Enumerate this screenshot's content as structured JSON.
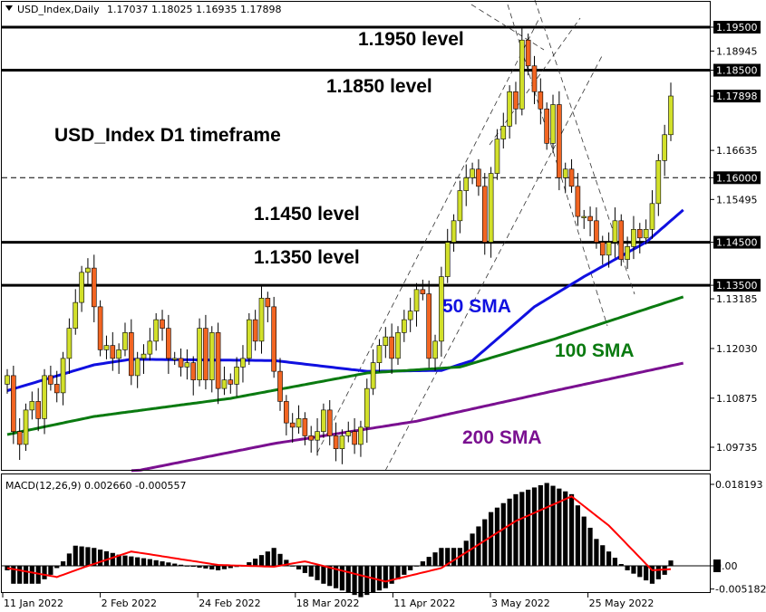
{
  "header": {
    "symbol_label": "USD_Index,Daily",
    "ohlc": "1.17037 1.18025 1.16935 1.17898"
  },
  "macd_header": "MACD(12,26,9) 0.002660 -0.000557",
  "chart_data": [
    {
      "type": "candlestick",
      "title": "USD_Index,Daily",
      "ylim": [
        1.0895,
        1.201
      ],
      "price_ticks": [
        "1.19500",
        "1.18945",
        "1.18500",
        "1.17898",
        "1.16635",
        "1.16000",
        "1.15495",
        "1.14500",
        "1.13500",
        "1.13185",
        "1.12030",
        "1.10875",
        "1.09735"
      ],
      "highlighted_ticks": [
        "1.19500",
        "1.18500",
        "1.17898",
        "1.16000",
        "1.14500",
        "1.13500"
      ],
      "first_open": 1.112,
      "closes": [
        1.114,
        1.101,
        1.098,
        1.106,
        1.108,
        1.104,
        1.114,
        1.112,
        1.11,
        1.118,
        1.125,
        1.131,
        1.138,
        1.139,
        1.13,
        1.12,
        1.121,
        1.118,
        1.12,
        1.124,
        1.114,
        1.118,
        1.119,
        1.122,
        1.127,
        1.125,
        1.118,
        1.118,
        1.116,
        1.117,
        1.113,
        1.125,
        1.113,
        1.124,
        1.111,
        1.113,
        1.112,
        1.116,
        1.118,
        1.127,
        1.122,
        1.132,
        1.13,
        1.115,
        1.108,
        1.103,
        1.102,
        1.104,
        1.1,
        1.099,
        1.101,
        1.106,
        1.1,
        1.097,
        1.1,
        1.101,
        1.098,
        1.102,
        1.111,
        1.117,
        1.121,
        1.123,
        1.118,
        1.124,
        1.127,
        1.129,
        1.134,
        1.133,
        1.118,
        1.122,
        1.137,
        1.145,
        1.15,
        1.157,
        1.16,
        1.162,
        1.158,
        1.145,
        1.161,
        1.169,
        1.172,
        1.18,
        1.176,
        1.192,
        1.186,
        1.18,
        1.176,
        1.168,
        1.177,
        1.16,
        1.162,
        1.158,
        1.151,
        1.151,
        1.15,
        1.145,
        1.142,
        1.145,
        1.15,
        1.141,
        1.144,
        1.148,
        1.146,
        1.148,
        1.154,
        1.164,
        1.17,
        1.179
      ],
      "horizontal_levels": [
        1.195,
        1.185,
        1.145,
        1.135
      ],
      "dashed_level": 1.16,
      "annotations": [
        {
          "text": "1.1950 level",
          "color": "#000000"
        },
        {
          "text": "1.1850 level",
          "color": "#000000"
        },
        {
          "text": "USD_Index D1 timeframe",
          "color": "#000000"
        },
        {
          "text": "1.1450 level",
          "color": "#000000"
        },
        {
          "text": "1.1350 level",
          "color": "#000000"
        },
        {
          "text": "50 SMA",
          "color": "#1010e0"
        },
        {
          "text": "100 SMA",
          "color": "#0a7a10"
        },
        {
          "text": "200 SMA",
          "color": "#7a1090"
        }
      ],
      "sma": [
        {
          "name": "50 SMA",
          "color": "#1010e0",
          "points": [
            [
              0,
              1.1105
            ],
            [
              14,
              1.1165
            ],
            [
              20,
              1.1178
            ],
            [
              43,
              1.1175
            ],
            [
              58,
              1.115
            ],
            [
              70,
              1.1152
            ],
            [
              75,
              1.1175
            ],
            [
              85,
              1.13
            ],
            [
              93,
              1.137
            ],
            [
              103,
              1.145
            ],
            [
              109,
              1.1525
            ]
          ]
        },
        {
          "name": "100 SMA",
          "color": "#0a7a10",
          "points": [
            [
              0,
              1.1003
            ],
            [
              14,
              1.1045
            ],
            [
              36,
              1.1087
            ],
            [
              58,
              1.1146
            ],
            [
              73,
              1.116
            ],
            [
              88,
              1.1224
            ],
            [
              109,
              1.1323
            ]
          ]
        },
        {
          "name": "200 SMA",
          "color": "#7a1090",
          "points": [
            [
              21,
              1.0919
            ],
            [
              43,
              1.0982
            ],
            [
              66,
              1.1034
            ],
            [
              88,
              1.1104
            ],
            [
              109,
              1.1169
            ]
          ]
        }
      ],
      "colors": {
        "bull": "#d2e02a",
        "bear": "#f26522"
      }
    },
    {
      "type": "bar+line",
      "title": "MACD(12,26,9)",
      "ylim": [
        -0.0065,
        0.0195
      ],
      "ticks": [
        "0.018193",
        "0.00",
        "-0.005182"
      ],
      "histogram_points": [
        [
          0,
          -0.001
        ],
        [
          1,
          -0.004
        ],
        [
          5,
          -0.004
        ],
        [
          7,
          -0.002
        ],
        [
          9,
          0.001
        ],
        [
          11,
          0.0045
        ],
        [
          14,
          0.004
        ],
        [
          18,
          0.0025
        ],
        [
          23,
          0.0015
        ],
        [
          29,
          0.0
        ],
        [
          34,
          -0.001
        ],
        [
          38,
          0.0
        ],
        [
          43,
          0.004
        ],
        [
          46,
          0.0
        ],
        [
          51,
          -0.004
        ],
        [
          57,
          -0.007
        ],
        [
          61,
          -0.005
        ],
        [
          66,
          0.0
        ],
        [
          70,
          0.004
        ],
        [
          73,
          0.004
        ],
        [
          78,
          0.012
        ],
        [
          82,
          0.016
        ],
        [
          87,
          0.0185
        ],
        [
          91,
          0.016
        ],
        [
          95,
          0.006
        ],
        [
          100,
          -0.001
        ],
        [
          104,
          -0.004
        ],
        [
          106,
          -0.002
        ],
        [
          107,
          0.0012
        ],
        [
          109,
          0.00266
        ]
      ],
      "signal_points": [
        [
          0,
          -0.0005
        ],
        [
          8,
          -0.0025
        ],
        [
          12,
          -0.0005
        ],
        [
          20,
          0.0032
        ],
        [
          34,
          0.0002
        ],
        [
          43,
          -0.0002
        ],
        [
          48,
          0.001
        ],
        [
          61,
          -0.0035
        ],
        [
          70,
          -0.0005
        ],
        [
          82,
          0.01
        ],
        [
          91,
          0.0155
        ],
        [
          97,
          0.009
        ],
        [
          104,
          -0.001
        ],
        [
          109,
          -0.000557
        ]
      ],
      "signal_color": "#ff0000",
      "x_tick_labels": [
        "11 Jan 2022",
        "2 Feb 2022",
        "24 Feb 2022",
        "18 Mar 2022",
        "11 Apr 2022",
        "3 May 2022",
        "25 May 2022"
      ]
    }
  ]
}
